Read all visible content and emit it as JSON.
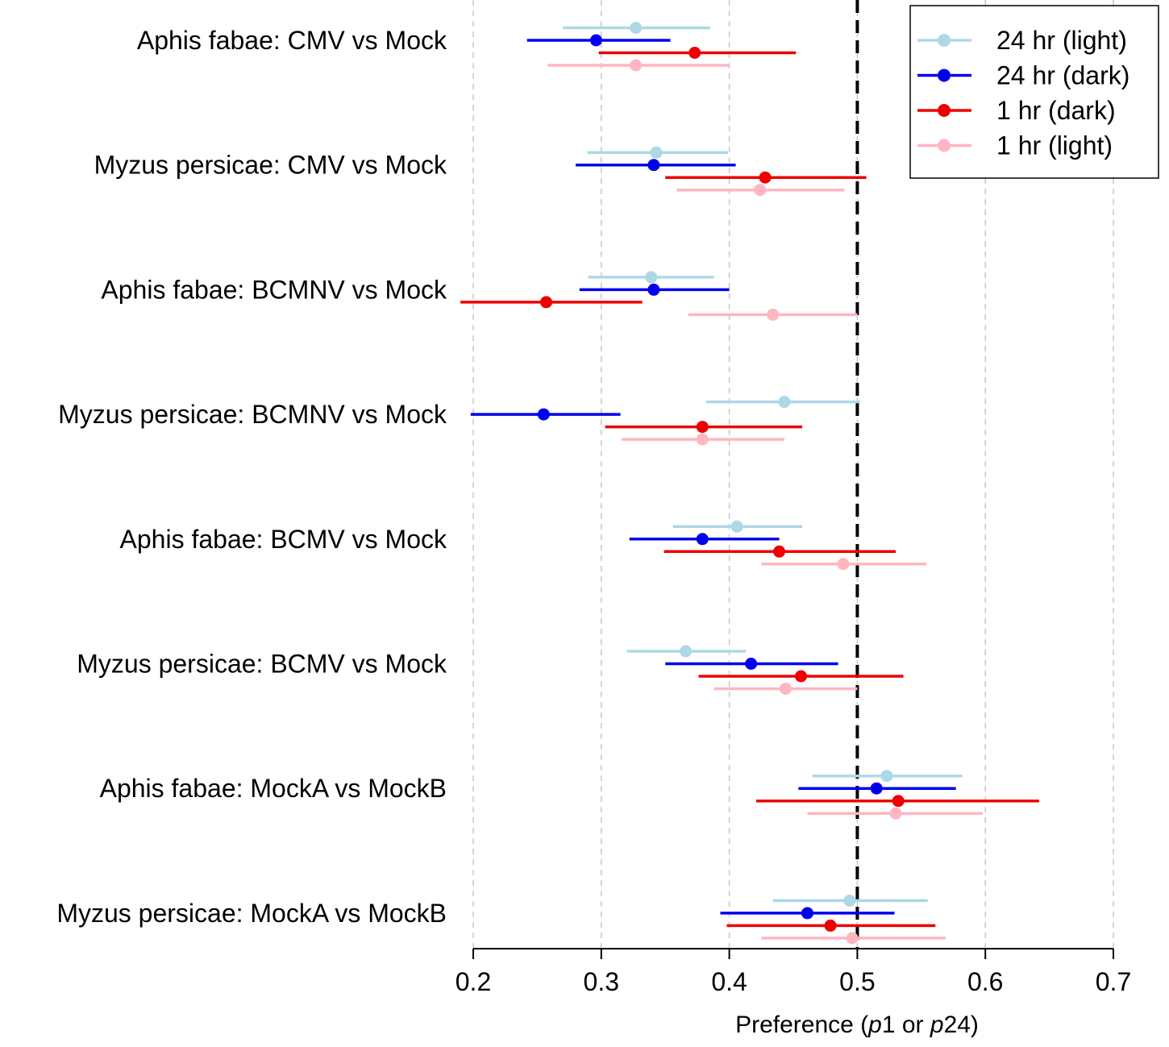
{
  "chart_data": {
    "type": "forest",
    "xlabel_parts": [
      "Preference (",
      "p",
      "1 or ",
      "p",
      "24)"
    ],
    "xlim": [
      0.2,
      0.7
    ],
    "xticks": [
      "0.2",
      "0.3",
      "0.4",
      "0.5",
      "0.6",
      "0.7"
    ],
    "reference_line": 0.5,
    "grid": "vertical dashed",
    "legend_position": "top-right",
    "categories": [
      "Aphis fabae: CMV vs Mock",
      "Myzus persicae: CMV vs Mock",
      "Aphis fabae: BCMNV vs Mock",
      "Myzus persicae: BCMNV vs Mock",
      "Aphis fabae: BCMV vs Mock",
      "Myzus persicae: BCMV vs Mock",
      "Aphis fabae: MockA vs MockB",
      "Myzus persicae: MockA vs MockB"
    ],
    "series": [
      {
        "name": "24 hr (light)",
        "color": "#add8e6",
        "points": [
          {
            "est": 0.327,
            "lo": 0.27,
            "hi": 0.385
          },
          {
            "est": 0.343,
            "lo": 0.289,
            "hi": 0.399
          },
          {
            "est": 0.339,
            "lo": 0.29,
            "hi": 0.388
          },
          {
            "est": 0.443,
            "lo": 0.382,
            "hi": 0.502
          },
          {
            "est": 0.406,
            "lo": 0.356,
            "hi": 0.457
          },
          {
            "est": 0.366,
            "lo": 0.32,
            "hi": 0.413
          },
          {
            "est": 0.523,
            "lo": 0.465,
            "hi": 0.582
          },
          {
            "est": 0.494,
            "lo": 0.434,
            "hi": 0.555
          }
        ]
      },
      {
        "name": "24 hr (dark)",
        "color": "#0000ee",
        "points": [
          {
            "est": 0.296,
            "lo": 0.242,
            "hi": 0.354
          },
          {
            "est": 0.341,
            "lo": 0.28,
            "hi": 0.405
          },
          {
            "est": 0.341,
            "lo": 0.283,
            "hi": 0.4
          },
          {
            "est": 0.255,
            "lo": 0.198,
            "hi": 0.315
          },
          {
            "est": 0.379,
            "lo": 0.322,
            "hi": 0.439
          },
          {
            "est": 0.417,
            "lo": 0.35,
            "hi": 0.485
          },
          {
            "est": 0.515,
            "lo": 0.454,
            "hi": 0.577
          },
          {
            "est": 0.461,
            "lo": 0.393,
            "hi": 0.529
          }
        ]
      },
      {
        "name": "1 hr (dark)",
        "color": "#ee0000",
        "points": [
          {
            "est": 0.373,
            "lo": 0.298,
            "hi": 0.452
          },
          {
            "est": 0.428,
            "lo": 0.35,
            "hi": 0.507
          },
          {
            "est": 0.257,
            "lo": 0.19,
            "hi": 0.332
          },
          {
            "est": 0.379,
            "lo": 0.303,
            "hi": 0.457
          },
          {
            "est": 0.439,
            "lo": 0.349,
            "hi": 0.53
          },
          {
            "est": 0.456,
            "lo": 0.376,
            "hi": 0.536
          },
          {
            "est": 0.532,
            "lo": 0.421,
            "hi": 0.642
          },
          {
            "est": 0.479,
            "lo": 0.398,
            "hi": 0.561
          }
        ]
      },
      {
        "name": "1 hr (light)",
        "color": "#ffb6c1",
        "points": [
          {
            "est": 0.327,
            "lo": 0.258,
            "hi": 0.4
          },
          {
            "est": 0.424,
            "lo": 0.359,
            "hi": 0.49
          },
          {
            "est": 0.434,
            "lo": 0.368,
            "hi": 0.5
          },
          {
            "est": 0.379,
            "lo": 0.316,
            "hi": 0.443
          },
          {
            "est": 0.489,
            "lo": 0.425,
            "hi": 0.554
          },
          {
            "est": 0.444,
            "lo": 0.388,
            "hi": 0.5
          },
          {
            "est": 0.53,
            "lo": 0.461,
            "hi": 0.598
          },
          {
            "est": 0.496,
            "lo": 0.425,
            "hi": 0.569
          }
        ]
      }
    ]
  }
}
